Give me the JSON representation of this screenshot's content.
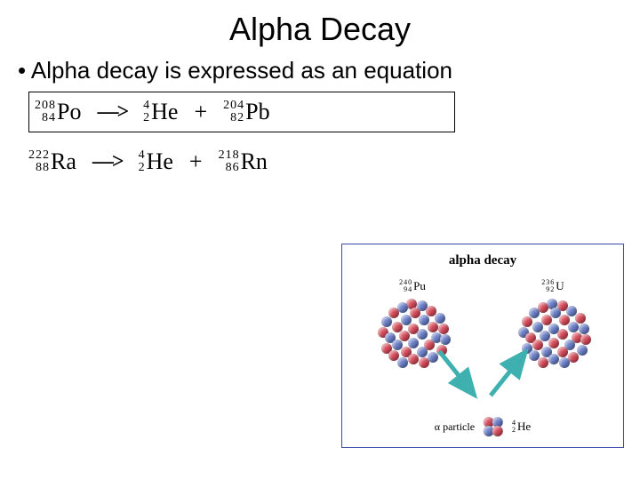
{
  "title": "Alpha Decay",
  "bullet": "• Alpha decay is expressed as an equation",
  "equations": [
    {
      "boxed": true,
      "left": {
        "mass": "208",
        "z": "84",
        "sym": "Po"
      },
      "arrow": "—>",
      "mid": {
        "mass": "4",
        "z": "2",
        "sym": "He"
      },
      "plus": "+",
      "right": {
        "mass": "204",
        "z": "82",
        "sym": "Pb"
      }
    },
    {
      "boxed": false,
      "left": {
        "mass": "222",
        "z": "88",
        "sym": "Ra"
      },
      "arrow": "—>",
      "mid": {
        "mass": "4",
        "z": "2",
        "sym": "He"
      },
      "plus": "+",
      "right": {
        "mass": "218",
        "z": "86",
        "sym": "Rn"
      }
    }
  ],
  "diagram": {
    "title": "alpha decay",
    "parent": {
      "mass": "240",
      "z": "94",
      "sym": "Pu"
    },
    "daughter": {
      "mass": "236",
      "z": "92",
      "sym": "U"
    },
    "alpha_label_prefix": "α  particle",
    "alpha": {
      "mass": "4",
      "z": "2",
      "sym": "He"
    },
    "colors": {
      "proton": "#d64a5a",
      "neutron": "#6a7ec8",
      "arrow": "#3eb0b0",
      "border": "#3a4aa8"
    },
    "nucleons_parent": [
      [
        34,
        2,
        "p"
      ],
      [
        46,
        4,
        "n"
      ],
      [
        24,
        6,
        "n"
      ],
      [
        56,
        10,
        "p"
      ],
      [
        14,
        12,
        "p"
      ],
      [
        38,
        12,
        "p"
      ],
      [
        66,
        18,
        "n"
      ],
      [
        6,
        22,
        "n"
      ],
      [
        28,
        20,
        "n"
      ],
      [
        48,
        20,
        "n"
      ],
      [
        18,
        28,
        "p"
      ],
      [
        58,
        28,
        "p"
      ],
      [
        70,
        30,
        "p"
      ],
      [
        2,
        34,
        "p"
      ],
      [
        36,
        30,
        "p"
      ],
      [
        10,
        40,
        "n"
      ],
      [
        26,
        38,
        "p"
      ],
      [
        46,
        36,
        "n"
      ],
      [
        62,
        40,
        "n"
      ],
      [
        72,
        42,
        "n"
      ],
      [
        18,
        48,
        "n"
      ],
      [
        36,
        46,
        "n"
      ],
      [
        54,
        48,
        "p"
      ],
      [
        6,
        52,
        "p"
      ],
      [
        68,
        54,
        "p"
      ],
      [
        28,
        56,
        "p"
      ],
      [
        46,
        56,
        "n"
      ],
      [
        14,
        60,
        "p"
      ],
      [
        58,
        62,
        "n"
      ],
      [
        36,
        64,
        "p"
      ],
      [
        24,
        68,
        "n"
      ],
      [
        48,
        68,
        "p"
      ]
    ],
    "nucleons_daughter": [
      [
        34,
        2,
        "n"
      ],
      [
        46,
        4,
        "p"
      ],
      [
        24,
        6,
        "p"
      ],
      [
        56,
        10,
        "n"
      ],
      [
        14,
        12,
        "n"
      ],
      [
        38,
        12,
        "n"
      ],
      [
        66,
        18,
        "p"
      ],
      [
        6,
        22,
        "p"
      ],
      [
        28,
        20,
        "p"
      ],
      [
        48,
        20,
        "p"
      ],
      [
        18,
        28,
        "n"
      ],
      [
        58,
        28,
        "n"
      ],
      [
        70,
        30,
        "n"
      ],
      [
        2,
        34,
        "n"
      ],
      [
        36,
        30,
        "n"
      ],
      [
        10,
        40,
        "p"
      ],
      [
        26,
        38,
        "n"
      ],
      [
        46,
        36,
        "p"
      ],
      [
        62,
        40,
        "p"
      ],
      [
        72,
        42,
        "p"
      ],
      [
        18,
        48,
        "p"
      ],
      [
        36,
        46,
        "p"
      ],
      [
        54,
        48,
        "n"
      ],
      [
        6,
        52,
        "n"
      ],
      [
        68,
        54,
        "n"
      ],
      [
        28,
        56,
        "n"
      ],
      [
        46,
        56,
        "p"
      ],
      [
        14,
        60,
        "n"
      ],
      [
        58,
        62,
        "p"
      ],
      [
        36,
        64,
        "n"
      ],
      [
        24,
        68,
        "p"
      ],
      [
        48,
        68,
        "n"
      ]
    ],
    "alpha_nucleons": [
      [
        2,
        2,
        "p"
      ],
      [
        12,
        2,
        "n"
      ],
      [
        2,
        12,
        "n"
      ],
      [
        12,
        12,
        "p"
      ]
    ]
  }
}
